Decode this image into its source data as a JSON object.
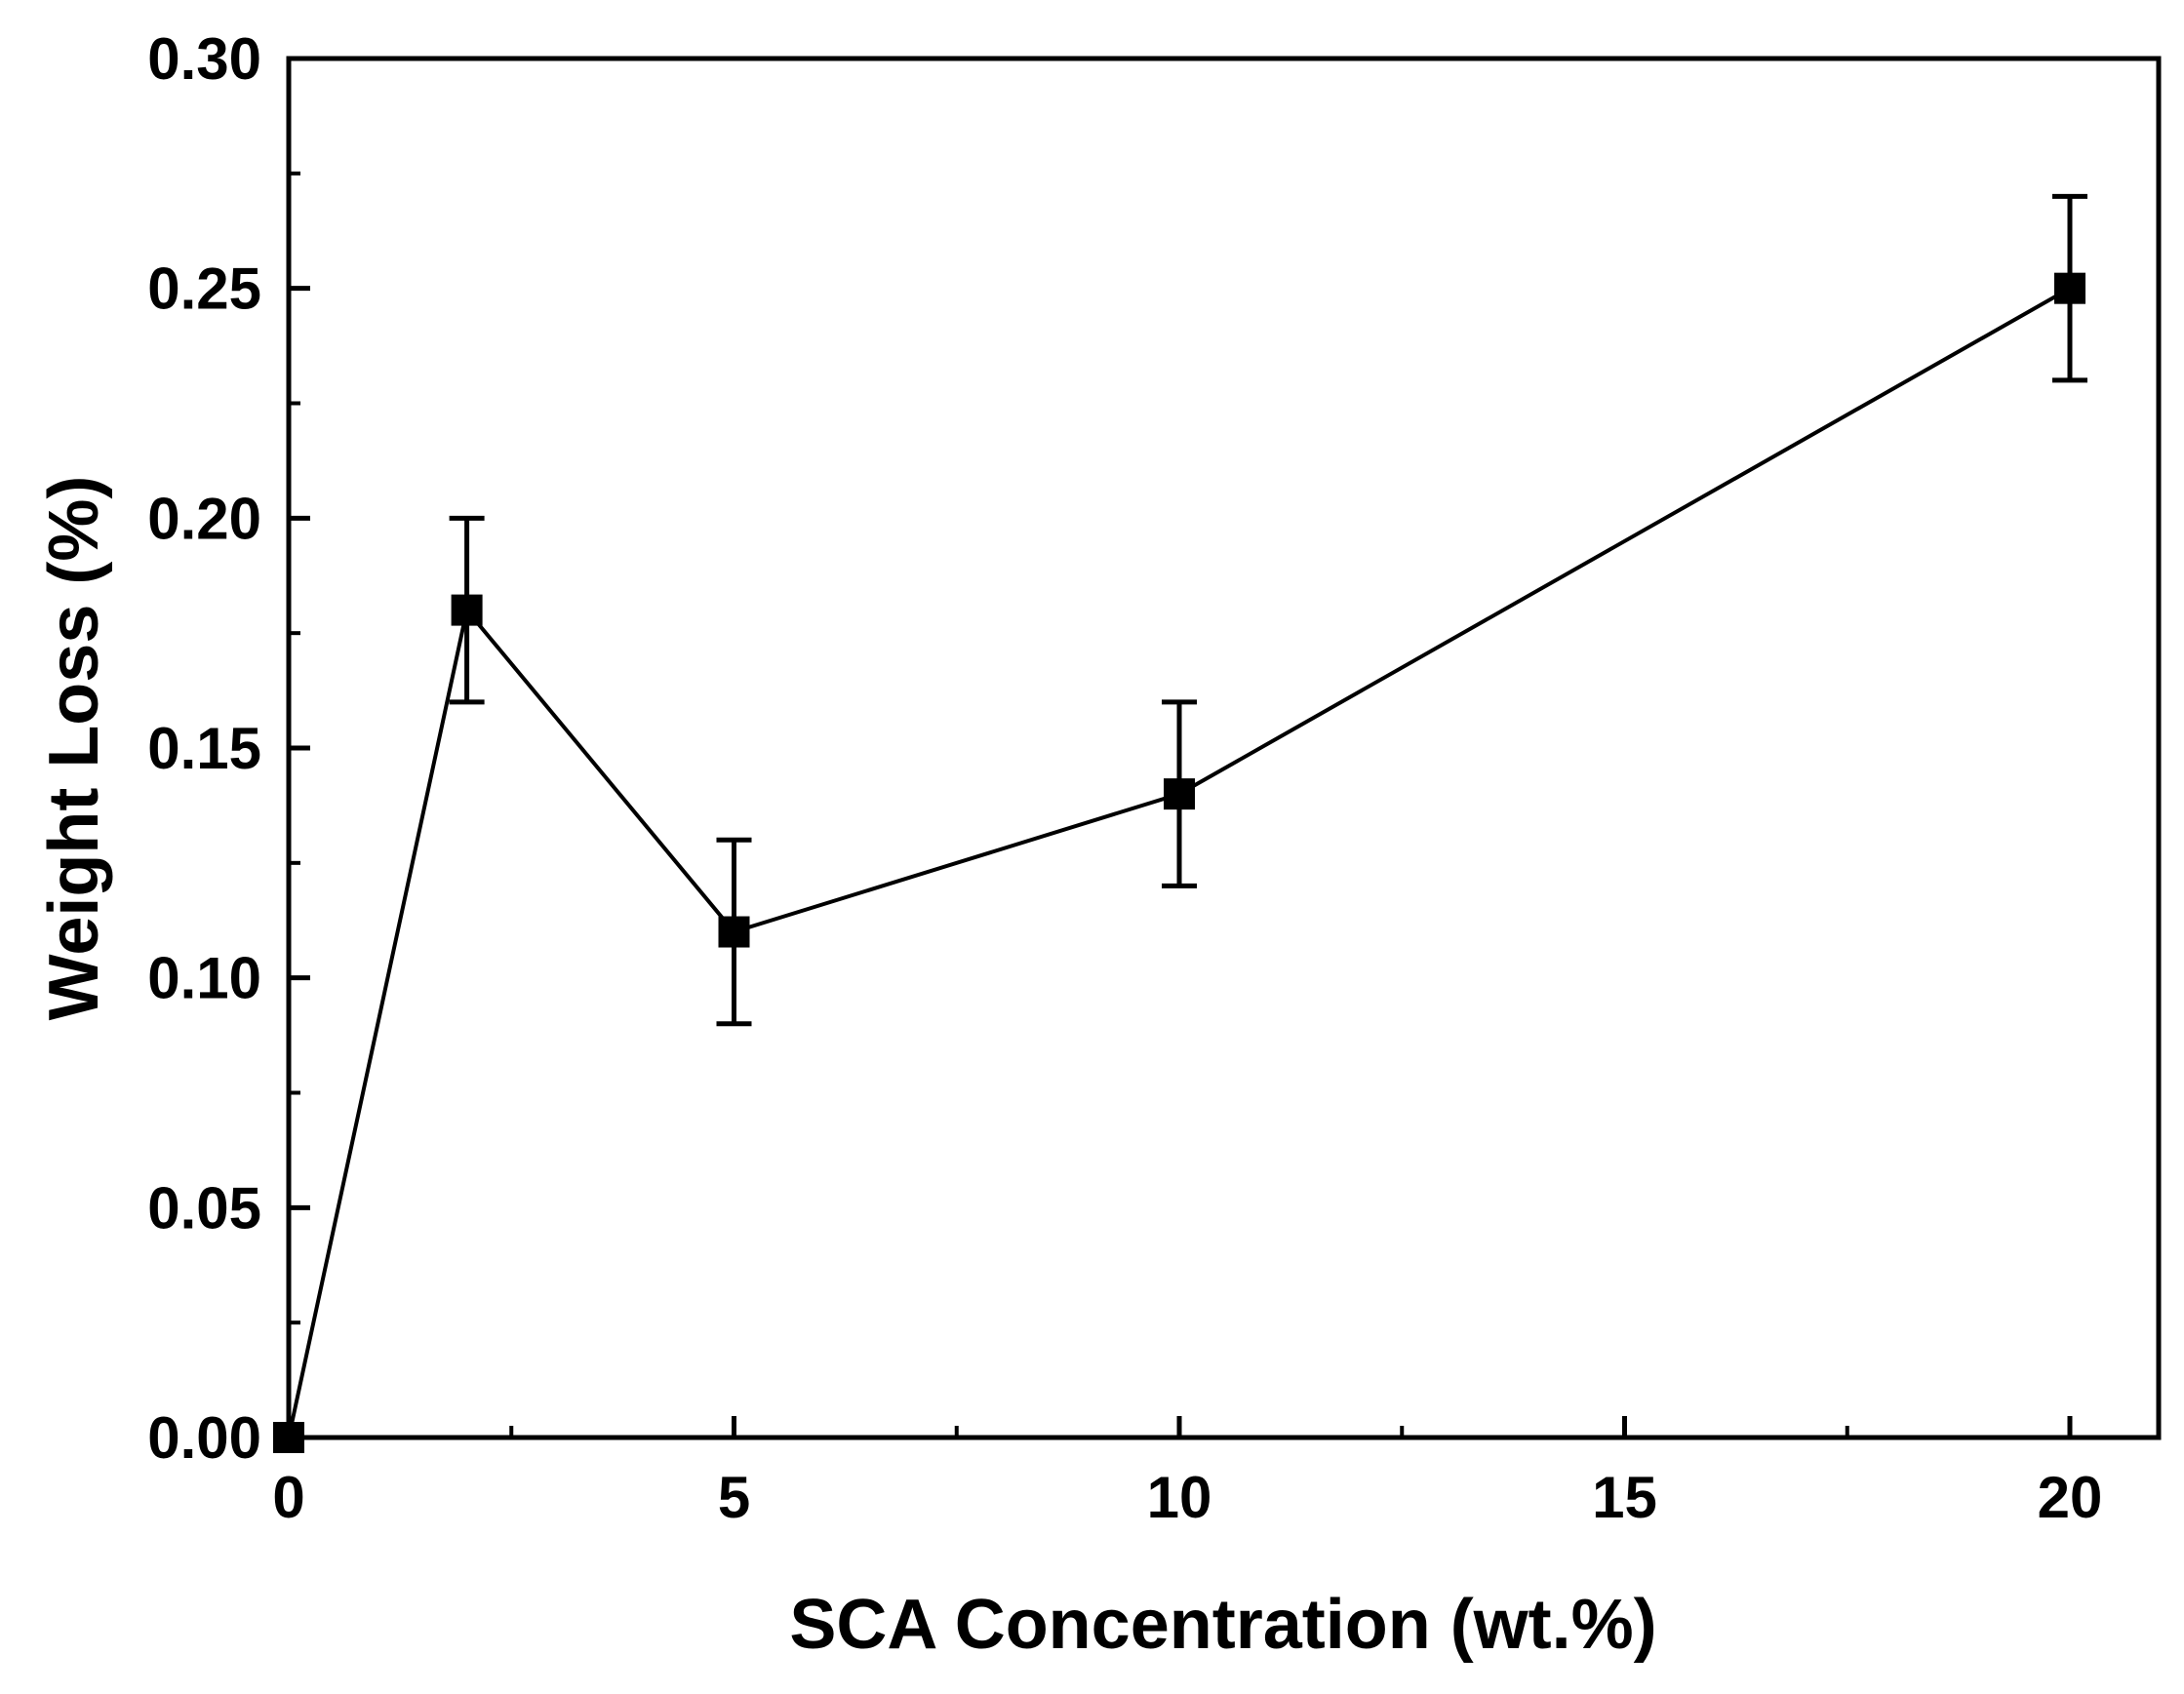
{
  "chart_data": {
    "type": "line",
    "title": "",
    "xlabel": "SCA Concentration (wt.%)",
    "ylabel": "Weight Loss (%)",
    "xlim": [
      0,
      21
    ],
    "ylim": [
      0,
      0.3
    ],
    "x_major_ticks": [
      0,
      5,
      10,
      15,
      20
    ],
    "x_tick_labels": [
      "0",
      "5",
      "10",
      "15",
      "20"
    ],
    "x_minor_ticks": [
      2.5,
      7.5,
      12.5,
      17.5
    ],
    "y_major_ticks": [
      0,
      0.05,
      0.1,
      0.15,
      0.2,
      0.25,
      0.3
    ],
    "y_tick_labels": [
      "0.00",
      "0.05",
      "0.10",
      "0.15",
      "0.20",
      "0.25",
      "0.30"
    ],
    "grid": false,
    "legend": "none",
    "series": [
      {
        "name": "Weight Loss",
        "color": "#000000",
        "marker": "square",
        "x": [
          0,
          2,
          5,
          10,
          20
        ],
        "y": [
          0.0,
          0.18,
          0.11,
          0.14,
          0.25
        ],
        "error": [
          0,
          0.02,
          0.02,
          0.02,
          0.02
        ]
      }
    ]
  }
}
